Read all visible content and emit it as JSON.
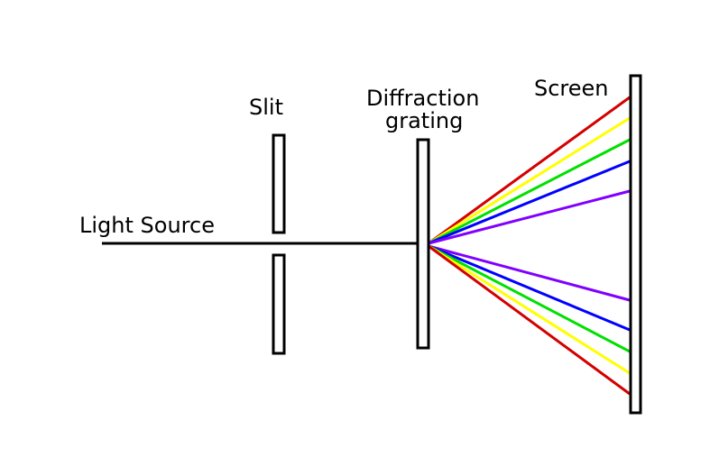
{
  "labels": {
    "light_source": "Light Source",
    "slit": "Slit",
    "grating_line1": "Diffraction",
    "grating_line2": "grating",
    "screen": "Screen"
  },
  "colors": {
    "outline": "#000000",
    "red": "#d40000",
    "yellow": "#ffff00",
    "green": "#00e000",
    "blue": "#0000ff",
    "violet": "#8000ff"
  },
  "rays": [
    {
      "color": "red",
      "side": "upper"
    },
    {
      "color": "yellow",
      "side": "upper"
    },
    {
      "color": "green",
      "side": "upper"
    },
    {
      "color": "blue",
      "side": "upper"
    },
    {
      "color": "violet",
      "side": "upper"
    },
    {
      "color": "violet",
      "side": "lower"
    },
    {
      "color": "blue",
      "side": "lower"
    },
    {
      "color": "green",
      "side": "lower"
    },
    {
      "color": "yellow",
      "side": "lower"
    },
    {
      "color": "red",
      "side": "lower"
    }
  ]
}
